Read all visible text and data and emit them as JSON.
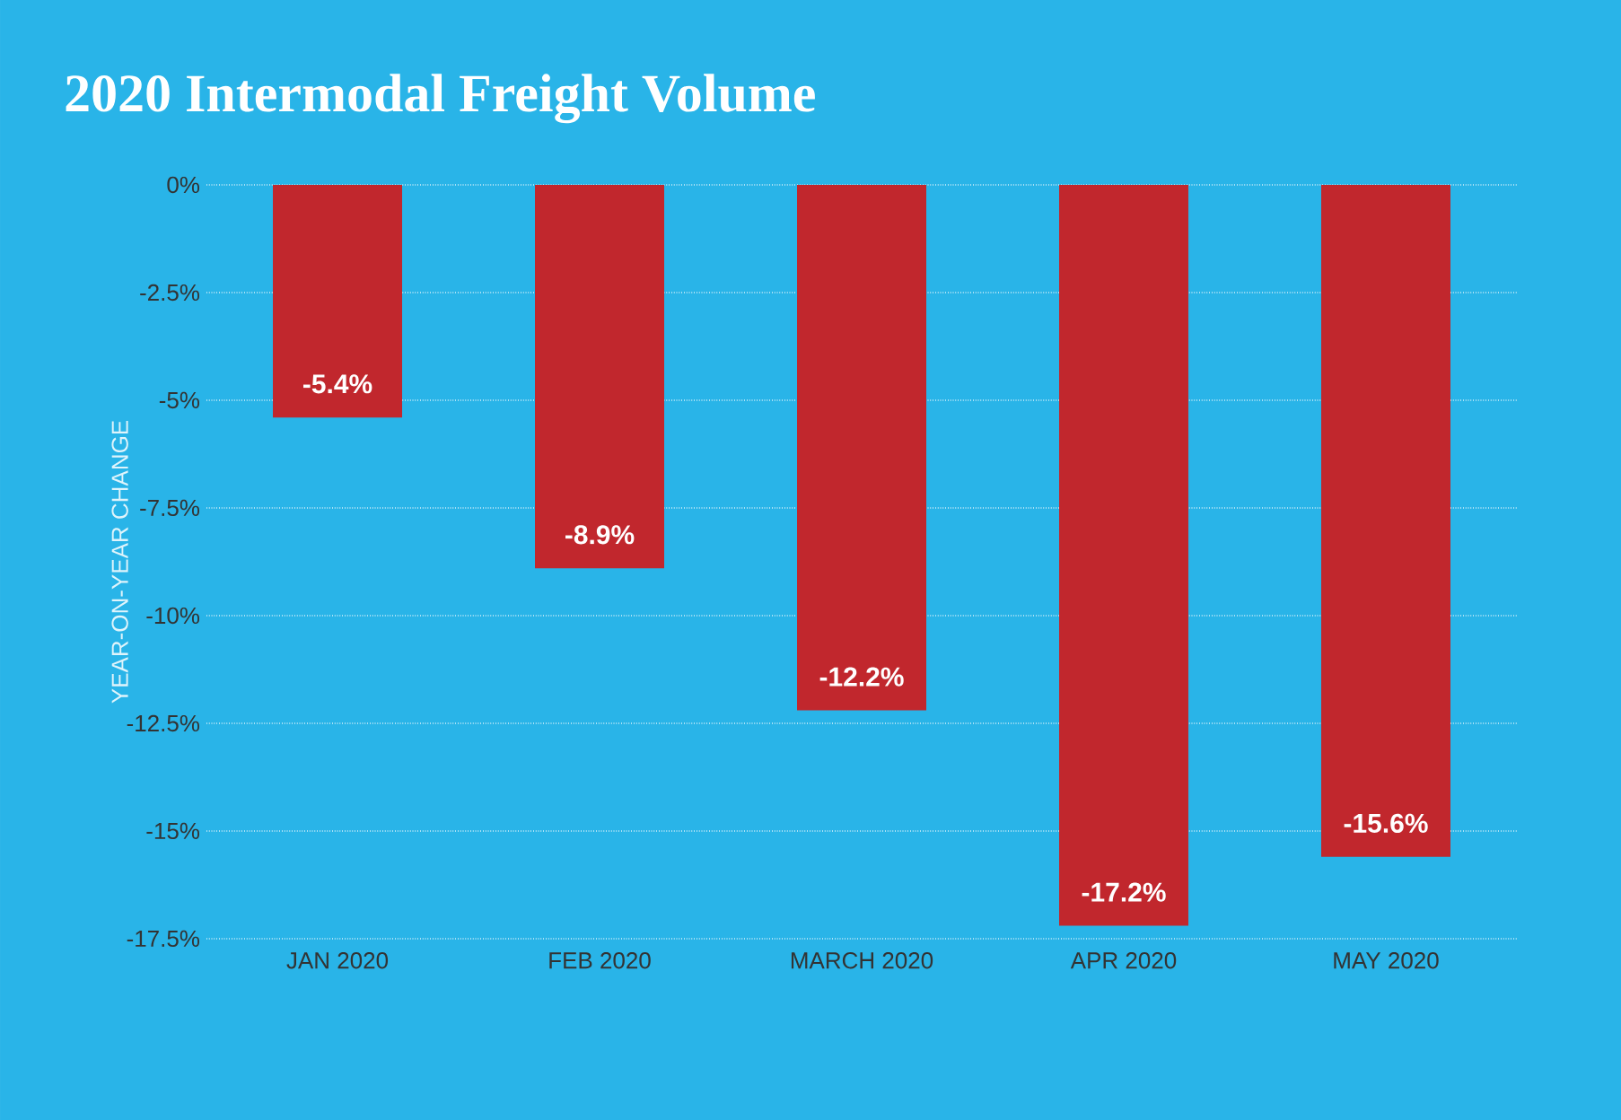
{
  "chart_data": {
    "type": "bar",
    "title": "2020 Intermodal Freight Volume",
    "ylabel": "YEAR-ON-YEAR CHANGE",
    "categories": [
      "JAN 2020",
      "FEB 2020",
      "MARCH 2020",
      "APR 2020",
      "MAY 2020"
    ],
    "values": [
      -5.4,
      -8.9,
      -12.2,
      -17.2,
      -15.6
    ],
    "value_labels": [
      "-5.4%",
      "-8.9%",
      "-12.2%",
      "-17.2%",
      "-15.6%"
    ],
    "color": "#c1272d",
    "ylim": [
      -17.5,
      0
    ],
    "yticks": [
      {
        "value": 0,
        "label": "0%"
      },
      {
        "value": -2.5,
        "label": "-2.5%"
      },
      {
        "value": -5,
        "label": "-5%"
      },
      {
        "value": -7.5,
        "label": "-7.5%"
      },
      {
        "value": -10,
        "label": "-10%"
      },
      {
        "value": -12.5,
        "label": "-12.5%"
      },
      {
        "value": -15,
        "label": "-15%"
      },
      {
        "value": -17.5,
        "label": "-17.5%"
      }
    ],
    "grid": "y"
  }
}
